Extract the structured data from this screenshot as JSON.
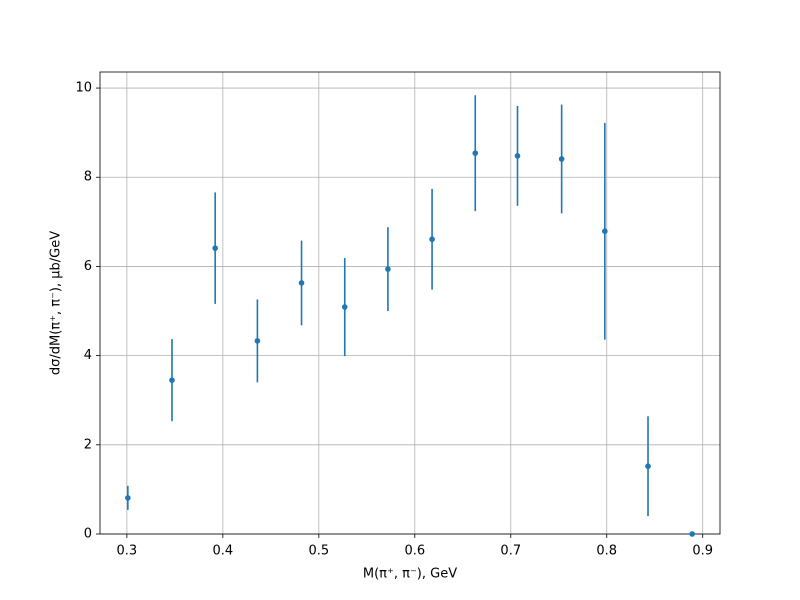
{
  "chart_data": {
    "type": "scatter",
    "xlabel": "M(π⁺, π⁻), GeV",
    "ylabel": "dσ/dM(π⁺, π⁻), μb/GeV",
    "x": [
      0.301,
      0.347,
      0.392,
      0.436,
      0.482,
      0.527,
      0.572,
      0.618,
      0.663,
      0.707,
      0.753,
      0.798,
      0.843,
      0.889
    ],
    "values": [
      0.81,
      3.45,
      6.41,
      4.33,
      5.63,
      5.09,
      5.94,
      6.61,
      8.54,
      8.48,
      8.41,
      6.79,
      1.52,
      0
    ],
    "errors": [
      0.27,
      0.92,
      1.25,
      0.93,
      0.95,
      1.1,
      0.94,
      1.13,
      1.3,
      1.12,
      1.22,
      2.43,
      1.12,
      0
    ],
    "color": "#1f77b4",
    "xlim": [
      0.272,
      0.918
    ],
    "ylim": [
      0,
      10.36
    ],
    "xticks": [
      0.3,
      0.4,
      0.5,
      0.6,
      0.7,
      0.8,
      0.9
    ],
    "yticks": [
      0,
      2,
      4,
      6,
      8,
      10
    ],
    "grid": true
  }
}
